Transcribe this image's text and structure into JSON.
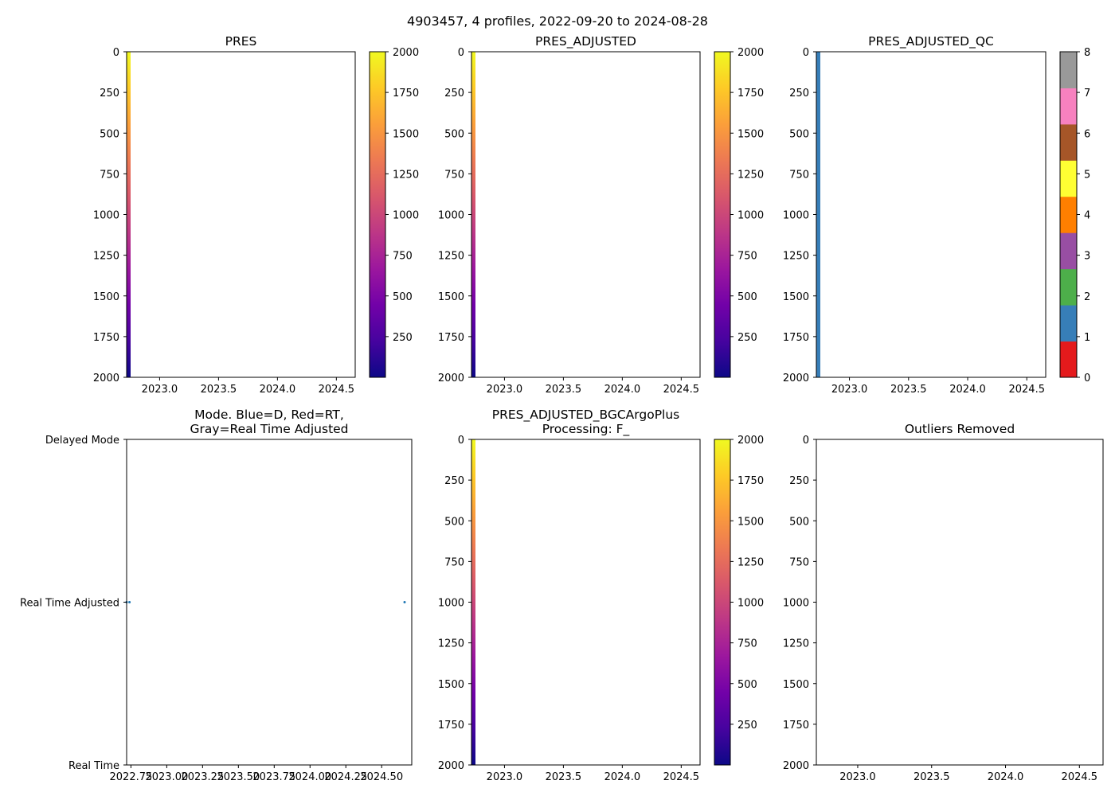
{
  "figure": {
    "suptitle": "4903457, 4 profiles, 2022-09-20 to 2024-08-28",
    "float_id": "4903457",
    "profile_count": 4,
    "date_start": "2022-09-20",
    "date_end": "2024-08-28"
  },
  "colors": {
    "plasma_r": [
      "#f0f921",
      "#fdca26",
      "#fb9f3a",
      "#ed7953",
      "#d8576b",
      "#bd3786",
      "#9c179e",
      "#7201a8",
      "#46039f",
      "#0d0887"
    ],
    "qc_classes": [
      "#e41a1c",
      "#377eb8",
      "#4daf4a",
      "#984ea3",
      "#ff7f00",
      "#ffff33",
      "#a65628",
      "#f781bf",
      "#999999"
    ],
    "axis": "#000000",
    "mode_marker": "#1f77b4"
  },
  "chart_data": [
    {
      "id": "pres",
      "type": "heatmap",
      "title": "PRES",
      "x_range": [
        2022.72,
        2024.66
      ],
      "x_ticks": [
        2023.0,
        2023.5,
        2024.0,
        2024.5
      ],
      "x_tick_labels": [
        "2023.0",
        "2023.5",
        "2024.0",
        "2024.5"
      ],
      "y_range": [
        0,
        2000
      ],
      "y_inverted": true,
      "y_ticks": [
        0,
        250,
        500,
        750,
        1000,
        1250,
        1500,
        1750,
        2000
      ],
      "y_tick_labels": [
        "0",
        "250",
        "500",
        "750",
        "1000",
        "1250",
        "1500",
        "1750",
        "2000"
      ],
      "data_column": {
        "x_start": 2022.72,
        "x_end": 2022.74,
        "value": "pressure (equals depth)"
      },
      "colorbar": {
        "colormap": "plasma_r",
        "range": [
          0,
          2000
        ],
        "ticks": [
          250,
          500,
          750,
          1000,
          1250,
          1500,
          1750,
          2000
        ],
        "tick_labels": [
          "250",
          "500",
          "750",
          "1000",
          "1250",
          "1500",
          "1750",
          "2000"
        ]
      }
    },
    {
      "id": "pres-adjusted",
      "type": "heatmap",
      "title": "PRES_ADJUSTED",
      "x_range": [
        2022.72,
        2024.66
      ],
      "x_ticks": [
        2023.0,
        2023.5,
        2024.0,
        2024.5
      ],
      "x_tick_labels": [
        "2023.0",
        "2023.5",
        "2024.0",
        "2024.5"
      ],
      "y_range": [
        0,
        2000
      ],
      "y_inverted": true,
      "y_ticks": [
        0,
        250,
        500,
        750,
        1000,
        1250,
        1500,
        1750,
        2000
      ],
      "y_tick_labels": [
        "0",
        "250",
        "500",
        "750",
        "1000",
        "1250",
        "1500",
        "1750",
        "2000"
      ],
      "data_column": {
        "x_start": 2022.72,
        "x_end": 2022.74,
        "value": "pressure (equals depth)"
      },
      "colorbar": {
        "colormap": "plasma_r",
        "range": [
          0,
          2000
        ],
        "ticks": [
          250,
          500,
          750,
          1000,
          1250,
          1500,
          1750,
          2000
        ],
        "tick_labels": [
          "250",
          "500",
          "750",
          "1000",
          "1250",
          "1500",
          "1750",
          "2000"
        ]
      }
    },
    {
      "id": "pres-adjusted-qc",
      "type": "heatmap",
      "title": "PRES_ADJUSTED_QC",
      "x_range": [
        2022.72,
        2024.66
      ],
      "x_ticks": [
        2023.0,
        2023.5,
        2024.0,
        2024.5
      ],
      "x_tick_labels": [
        "2023.0",
        "2023.5",
        "2024.0",
        "2024.5"
      ],
      "y_range": [
        0,
        2000
      ],
      "y_inverted": true,
      "y_ticks": [
        0,
        250,
        500,
        750,
        1000,
        1250,
        1500,
        1750,
        2000
      ],
      "y_tick_labels": [
        "0",
        "250",
        "500",
        "750",
        "1000",
        "1250",
        "1500",
        "1750",
        "2000"
      ],
      "data_column": {
        "x_start": 2022.72,
        "x_end": 2022.74,
        "qc_value": 1
      },
      "colorbar": {
        "colormap": "qc_classes",
        "range": [
          0,
          8
        ],
        "ticks": [
          0,
          1,
          2,
          3,
          4,
          5,
          6,
          7,
          8
        ],
        "tick_labels": [
          "0",
          "1",
          "2",
          "3",
          "4",
          "5",
          "6",
          "7",
          "8"
        ]
      }
    },
    {
      "id": "mode",
      "type": "scatter",
      "title_lines": [
        "Mode. Blue=D, Red=RT,",
        "Gray=Real Time Adjusted"
      ],
      "x_range": [
        2022.72,
        2024.71
      ],
      "x_ticks": [
        2022.75,
        2023.0,
        2023.25,
        2023.5,
        2023.75,
        2024.0,
        2024.25,
        2024.5
      ],
      "x_tick_labels": [
        "2022.75",
        "2023.00",
        "2023.25",
        "2023.50",
        "2023.75",
        "2024.00",
        "2024.25",
        "2024.50"
      ],
      "y_range": [
        0,
        2
      ],
      "y_ticks": [
        2,
        1,
        0
      ],
      "y_tick_labels": [
        "Delayed Mode",
        "Real Time Adjusted",
        "Real Time"
      ],
      "points": [
        {
          "x": 2022.72,
          "y": 1
        },
        {
          "x": 2022.74,
          "y": 1
        },
        {
          "x": 2024.66,
          "y": 1
        }
      ]
    },
    {
      "id": "pres-bgc",
      "type": "heatmap",
      "title_lines": [
        "PRES_ADJUSTED_BGCArgoPlus",
        "Processing: F_"
      ],
      "x_range": [
        2022.72,
        2024.66
      ],
      "x_ticks": [
        2023.0,
        2023.5,
        2024.0,
        2024.5
      ],
      "x_tick_labels": [
        "2023.0",
        "2023.5",
        "2024.0",
        "2024.5"
      ],
      "y_range": [
        0,
        2000
      ],
      "y_inverted": true,
      "y_ticks": [
        0,
        250,
        500,
        750,
        1000,
        1250,
        1500,
        1750,
        2000
      ],
      "y_tick_labels": [
        "0",
        "250",
        "500",
        "750",
        "1000",
        "1250",
        "1500",
        "1750",
        "2000"
      ],
      "data_column": {
        "x_start": 2022.72,
        "x_end": 2022.74,
        "value": "pressure (equals depth)"
      },
      "colorbar": {
        "colormap": "plasma_r",
        "range": [
          0,
          2000
        ],
        "ticks": [
          250,
          500,
          750,
          1000,
          1250,
          1500,
          1750,
          2000
        ],
        "tick_labels": [
          "250",
          "500",
          "750",
          "1000",
          "1250",
          "1500",
          "1750",
          "2000"
        ]
      }
    },
    {
      "id": "outliers",
      "type": "scatter",
      "title": "Outliers Removed",
      "x_range": [
        2022.72,
        2024.66
      ],
      "x_ticks": [
        2023.0,
        2023.5,
        2024.0,
        2024.5
      ],
      "x_tick_labels": [
        "2023.0",
        "2023.5",
        "2024.0",
        "2024.5"
      ],
      "y_range": [
        0,
        2000
      ],
      "y_inverted": true,
      "y_ticks": [
        0,
        250,
        500,
        750,
        1000,
        1250,
        1500,
        1750,
        2000
      ],
      "y_tick_labels": [
        "0",
        "250",
        "500",
        "750",
        "1000",
        "1250",
        "1500",
        "1750",
        "2000"
      ],
      "points": []
    }
  ]
}
